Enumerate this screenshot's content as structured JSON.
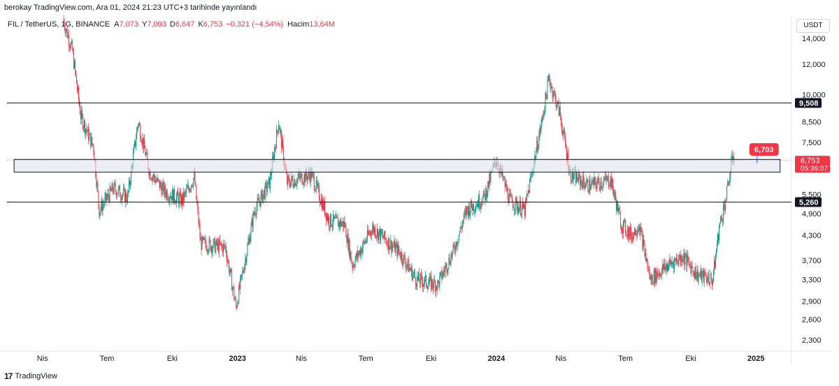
{
  "header": {
    "published_line": "berokay TradingView.com, Ara 01, 2024 21:23 UTC+3 tarihinde yayınlandı",
    "symbol": "FIL / TetherUS, 1G, BINANCE",
    "open_label": "A",
    "open": "7,073",
    "high_label": "Y",
    "high": "7,093",
    "low_label": "D",
    "low": "6,647",
    "close_label": "K",
    "close": "6,753",
    "change": "−0,321 (−4,54%)",
    "volume_label": "Hacim",
    "volume": "13,64M",
    "quote_currency": "USDT"
  },
  "footer": {
    "brand": "TradingView",
    "logo_text": "17"
  },
  "colors": {
    "up": "#089981",
    "down": "#f23645",
    "line": "#131722",
    "zone_fill": "#e0e3eb"
  },
  "chart_data": {
    "type": "candlestick",
    "title": "FIL / TetherUS, 1G, BINANCE",
    "scale": "log",
    "ylim": [
      2.15,
      16.0
    ],
    "y_ticks": [
      {
        "v": 14.0,
        "label": "14,000"
      },
      {
        "v": 12.0,
        "label": "12,000"
      },
      {
        "v": 10.0,
        "label": "10,000"
      },
      {
        "v": 8.5,
        "label": "8,500"
      },
      {
        "v": 7.5,
        "label": "7,500"
      },
      {
        "v": 5.5,
        "label": "5,500"
      },
      {
        "v": 4.9,
        "label": "4,900"
      },
      {
        "v": 4.3,
        "label": "4,300"
      },
      {
        "v": 3.7,
        "label": "3,700"
      },
      {
        "v": 3.3,
        "label": "3,300"
      },
      {
        "v": 2.9,
        "label": "2,900"
      },
      {
        "v": 2.6,
        "label": "2,600"
      },
      {
        "v": 2.3,
        "label": "2,300"
      }
    ],
    "x_ticks": [
      {
        "date": "2022-04-01",
        "label": "Nis",
        "bold": false
      },
      {
        "date": "2022-07-01",
        "label": "Tem",
        "bold": false
      },
      {
        "date": "2022-10-01",
        "label": "Eki",
        "bold": false
      },
      {
        "date": "2023-01-01",
        "label": "2023",
        "bold": true
      },
      {
        "date": "2023-04-01",
        "label": "Nis",
        "bold": false
      },
      {
        "date": "2023-07-01",
        "label": "Tem",
        "bold": false
      },
      {
        "date": "2023-10-01",
        "label": "Eki",
        "bold": false
      },
      {
        "date": "2024-01-01",
        "label": "2024",
        "bold": true
      },
      {
        "date": "2024-04-01",
        "label": "Nis",
        "bold": false
      },
      {
        "date": "2024-07-01",
        "label": "Tem",
        "bold": false
      },
      {
        "date": "2024-10-01",
        "label": "Eki",
        "bold": false
      },
      {
        "date": "2025-01-01",
        "label": "2025",
        "bold": true
      }
    ],
    "horizontal_lines": [
      {
        "value": 9.508,
        "label": "9,508"
      },
      {
        "value": 5.26,
        "label": "5,260"
      }
    ],
    "zone": {
      "from": 6.28,
      "to": 6.78,
      "start": "2022-02-20",
      "end": "2025-02-04"
    },
    "price_marker": {
      "value": 6.703,
      "label": "6,703"
    },
    "last_price": {
      "value": 6.753,
      "label": "6,753",
      "countdown": "05:36:07"
    },
    "series": [
      {
        "date": "2022-05-01",
        "close": 15.5
      },
      {
        "date": "2022-05-13",
        "close": 13.0
      },
      {
        "date": "2022-05-25",
        "close": 8.8
      },
      {
        "date": "2022-06-12",
        "close": 7.3
      },
      {
        "date": "2022-06-20",
        "close": 5.0
      },
      {
        "date": "2022-07-10",
        "close": 5.7
      },
      {
        "date": "2022-07-30",
        "close": 5.4
      },
      {
        "date": "2022-08-14",
        "close": 8.5
      },
      {
        "date": "2022-08-30",
        "close": 6.3
      },
      {
        "date": "2022-09-20",
        "close": 5.6
      },
      {
        "date": "2022-10-15",
        "close": 5.3
      },
      {
        "date": "2022-11-01",
        "close": 6.1
      },
      {
        "date": "2022-11-10",
        "close": 4.1
      },
      {
        "date": "2022-12-15",
        "close": 4.0
      },
      {
        "date": "2022-12-30",
        "close": 2.8
      },
      {
        "date": "2023-01-25",
        "close": 5.0
      },
      {
        "date": "2023-02-15",
        "close": 5.9
      },
      {
        "date": "2023-02-28",
        "close": 8.5
      },
      {
        "date": "2023-03-12",
        "close": 5.9
      },
      {
        "date": "2023-04-15",
        "close": 6.2
      },
      {
        "date": "2023-05-10",
        "close": 4.7
      },
      {
        "date": "2023-06-01",
        "close": 4.6
      },
      {
        "date": "2023-06-12",
        "close": 3.6
      },
      {
        "date": "2023-07-10",
        "close": 4.5
      },
      {
        "date": "2023-08-17",
        "close": 3.9
      },
      {
        "date": "2023-09-10",
        "close": 3.3
      },
      {
        "date": "2023-10-10",
        "close": 3.2
      },
      {
        "date": "2023-11-01",
        "close": 3.9
      },
      {
        "date": "2023-11-20",
        "close": 5.0
      },
      {
        "date": "2023-12-15",
        "close": 5.4
      },
      {
        "date": "2024-01-01",
        "close": 6.8
      },
      {
        "date": "2024-01-20",
        "close": 5.3
      },
      {
        "date": "2024-02-10",
        "close": 5.0
      },
      {
        "date": "2024-03-05",
        "close": 8.5
      },
      {
        "date": "2024-03-15",
        "close": 11.0
      },
      {
        "date": "2024-03-30",
        "close": 9.0
      },
      {
        "date": "2024-04-14",
        "close": 6.2
      },
      {
        "date": "2024-05-10",
        "close": 5.8
      },
      {
        "date": "2024-06-10",
        "close": 6.0
      },
      {
        "date": "2024-06-25",
        "close": 4.6
      },
      {
        "date": "2024-07-10",
        "close": 4.3
      },
      {
        "date": "2024-07-20",
        "close": 4.6
      },
      {
        "date": "2024-08-05",
        "close": 3.3
      },
      {
        "date": "2024-08-30",
        "close": 3.6
      },
      {
        "date": "2024-09-20",
        "close": 3.8
      },
      {
        "date": "2024-10-10",
        "close": 3.4
      },
      {
        "date": "2024-11-01",
        "close": 3.3
      },
      {
        "date": "2024-11-10",
        "close": 4.5
      },
      {
        "date": "2024-11-20",
        "close": 5.4
      },
      {
        "date": "2024-11-30",
        "close": 7.07
      },
      {
        "date": "2024-12-01",
        "close": 6.753
      }
    ]
  }
}
